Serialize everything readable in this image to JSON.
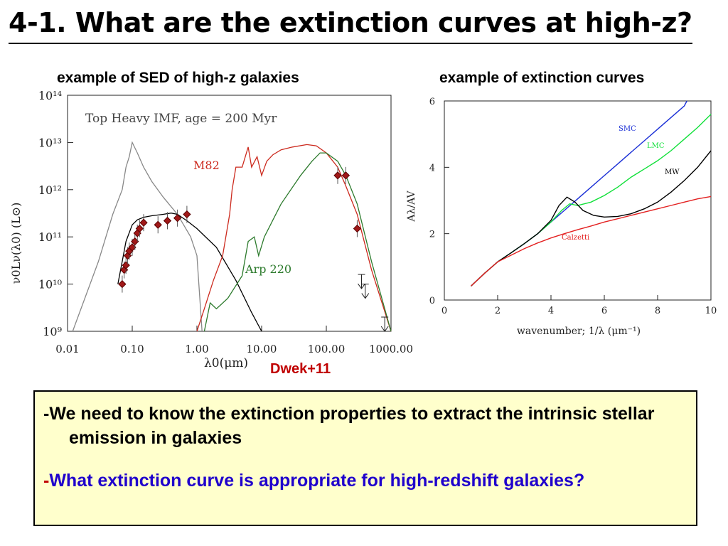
{
  "slide": {
    "title": "4-1. What are the extinction curves at high-z?",
    "caption_left": "example of SED of high-z galaxies",
    "caption_right": "example of extinction curves",
    "credit": "Dwek+11"
  },
  "notes": [
    {
      "dash": "-",
      "text": "We need to know the extinction properties to extract the intrinsic stellar emission in galaxies",
      "color": "#000000"
    },
    {
      "dash": "-",
      "text": "What extinction curve is appropriate for high-redshift galaxies?",
      "color": "#1f00cc"
    }
  ],
  "chart_data": [
    {
      "type": "line",
      "annotation": "Top Heavy IMF, age = 200 Myr",
      "xlabel": "λ0(μm)",
      "ylabel": "ν0Lν(λ0) (L⊙)",
      "xscale": "log",
      "yscale": "log",
      "xlim": [
        0.01,
        1000
      ],
      "ylim": [
        1000000000.0,
        100000000000000.0
      ],
      "xticks": [
        "0.01",
        "0.10",
        "1.00",
        "10.00",
        "100.00",
        "1000.00"
      ],
      "yticks": [
        "10⁹",
        "10¹⁰",
        "10¹¹",
        "10¹²",
        "10¹³",
        "10¹⁴"
      ],
      "series": [
        {
          "name": "",
          "color": "#888888",
          "x": [
            0.012,
            0.03,
            0.05,
            0.07,
            0.08,
            0.09,
            0.1,
            0.12,
            0.15,
            0.2,
            0.3,
            0.5,
            0.8,
            1.0,
            1.2
          ],
          "y": [
            1000000000.0,
            30000000000.0,
            300000000000.0,
            1000000000000.0,
            3000000000000.0,
            5000000000000.0,
            10000000000000.0,
            6000000000000.0,
            3000000000000.0,
            1500000000000.0,
            700000000000.0,
            300000000000.0,
            100000000000.0,
            40000000000.0,
            1000000000.0
          ]
        },
        {
          "name": "",
          "color": "#000000",
          "x": [
            0.06,
            0.07,
            0.08,
            0.1,
            0.12,
            0.15,
            0.2,
            0.3,
            0.4,
            0.5,
            0.7,
            1.0,
            2.0,
            4.0,
            7.0,
            10.0
          ],
          "y": [
            10000000000.0,
            30000000000.0,
            80000000000.0,
            180000000000.0,
            230000000000.0,
            260000000000.0,
            280000000000.0,
            300000000000.0,
            320000000000.0,
            300000000000.0,
            220000000000.0,
            150000000000.0,
            60000000000.0,
            12000000000.0,
            2500000000.0,
            1000000000.0
          ]
        },
        {
          "name": "M82",
          "color": "#cc2a1e",
          "x": [
            1.0,
            1.3,
            1.8,
            2.5,
            3.2,
            3.5,
            4.0,
            5.0,
            6.2,
            7.0,
            8.5,
            10,
            12,
            15,
            20,
            30,
            50,
            70,
            100,
            150,
            200,
            300,
            500,
            1000
          ],
          "y": [
            1000000000.0,
            3000000000.0,
            12000000000.0,
            40000000000.0,
            300000000000.0,
            1000000000000.0,
            3000000000000.0,
            3000000000000.0,
            8000000000000.0,
            3000000000000.0,
            5000000000000.0,
            2000000000000.0,
            4000000000000.0,
            5500000000000.0,
            7000000000000.0,
            8000000000000.0,
            9000000000000.0,
            8500000000000.0,
            6000000000000.0,
            3000000000000.0,
            1200000000000.0,
            300000000000.0,
            20000000000.0,
            1000000000.0
          ]
        },
        {
          "name": "Arp 220",
          "color": "#2c7a2c",
          "x": [
            1.3,
            1.6,
            2,
            3,
            5,
            6.2,
            7.7,
            9,
            11,
            20,
            40,
            60,
            80,
            100,
            150,
            200,
            300,
            500,
            1000
          ],
          "y": [
            1000000000.0,
            4000000000.0,
            3000000000.0,
            5000000000.0,
            15000000000.0,
            80000000000.0,
            100000000000.0,
            40000000000.0,
            100000000000.0,
            500000000000.0,
            2000000000000.0,
            4000000000000.0,
            6000000000000.0,
            6000000000000.0,
            4000000000000.0,
            2000000000000.0,
            500000000000.0,
            30000000000.0,
            1000000000.0
          ]
        }
      ],
      "observations": {
        "x": [
          0.07,
          0.075,
          0.08,
          0.085,
          0.09,
          0.1,
          0.11,
          0.12,
          0.13,
          0.15,
          0.25,
          0.35,
          0.5,
          0.7,
          150,
          200,
          300
        ],
        "y": [
          10000000000.0,
          20000000000.0,
          25000000000.0,
          40000000000.0,
          50000000000.0,
          60000000000.0,
          80000000000.0,
          120000000000.0,
          150000000000.0,
          200000000000.0,
          180000000000.0,
          220000000000.0,
          250000000000.0,
          300000000000.0,
          2000000000000.0,
          2000000000000.0,
          150000000000.0
        ]
      },
      "upper_limits": {
        "x": [
          350,
          400,
          800
        ],
        "y": [
          8000000000.0,
          5000000000.0,
          1000000000.0
        ]
      }
    },
    {
      "type": "line",
      "xlabel": "wavenumber; 1/λ (μm⁻¹)",
      "ylabel": "Aλ/AV",
      "xlim": [
        0,
        10
      ],
      "ylim": [
        0,
        6
      ],
      "xticks": [
        "0",
        "2",
        "4",
        "6",
        "8",
        "10"
      ],
      "yticks": [
        "0",
        "2",
        "4",
        "6"
      ],
      "series": [
        {
          "name": "SMC",
          "color": "#1a2fd6",
          "x": [
            1,
            1.5,
            2,
            2.5,
            3,
            3.5,
            4,
            4.5,
            5,
            5.5,
            6,
            6.5,
            7,
            7.5,
            8,
            8.5,
            9,
            9.1
          ],
          "y": [
            0.42,
            0.8,
            1.15,
            1.42,
            1.7,
            2.0,
            2.35,
            2.7,
            3.05,
            3.4,
            3.75,
            4.1,
            4.45,
            4.8,
            5.15,
            5.5,
            5.85,
            6.0
          ]
        },
        {
          "name": "LMC",
          "color": "#11e03a",
          "x": [
            1,
            1.5,
            2,
            2.5,
            3,
            3.5,
            4,
            4.4,
            4.7,
            5,
            5.5,
            6,
            6.5,
            7,
            7.5,
            8,
            8.5,
            9,
            9.5,
            10
          ],
          "y": [
            0.42,
            0.8,
            1.15,
            1.42,
            1.7,
            2.0,
            2.35,
            2.7,
            2.9,
            2.85,
            2.95,
            3.15,
            3.4,
            3.7,
            3.95,
            4.2,
            4.5,
            4.85,
            5.2,
            5.6
          ]
        },
        {
          "name": "MW",
          "color": "#000000",
          "x": [
            1,
            1.5,
            2,
            2.5,
            3,
            3.5,
            4,
            4.3,
            4.6,
            4.9,
            5.2,
            5.6,
            6,
            6.5,
            7,
            7.5,
            8,
            8.5,
            9,
            9.5,
            10
          ],
          "y": [
            0.42,
            0.8,
            1.15,
            1.42,
            1.7,
            2.0,
            2.4,
            2.85,
            3.1,
            2.95,
            2.7,
            2.55,
            2.5,
            2.52,
            2.6,
            2.75,
            2.95,
            3.25,
            3.6,
            4.0,
            4.5
          ]
        },
        {
          "name": "Calzetti",
          "color": "#e32020",
          "x": [
            1,
            1.5,
            2,
            2.5,
            3,
            3.5,
            4,
            4.5,
            5,
            5.5,
            6,
            6.5,
            7,
            7.5,
            8,
            8.5,
            9,
            9.5,
            10
          ],
          "y": [
            0.42,
            0.8,
            1.15,
            1.35,
            1.55,
            1.72,
            1.87,
            2.0,
            2.12,
            2.23,
            2.35,
            2.45,
            2.55,
            2.65,
            2.75,
            2.85,
            2.95,
            3.05,
            3.12
          ]
        }
      ]
    }
  ]
}
